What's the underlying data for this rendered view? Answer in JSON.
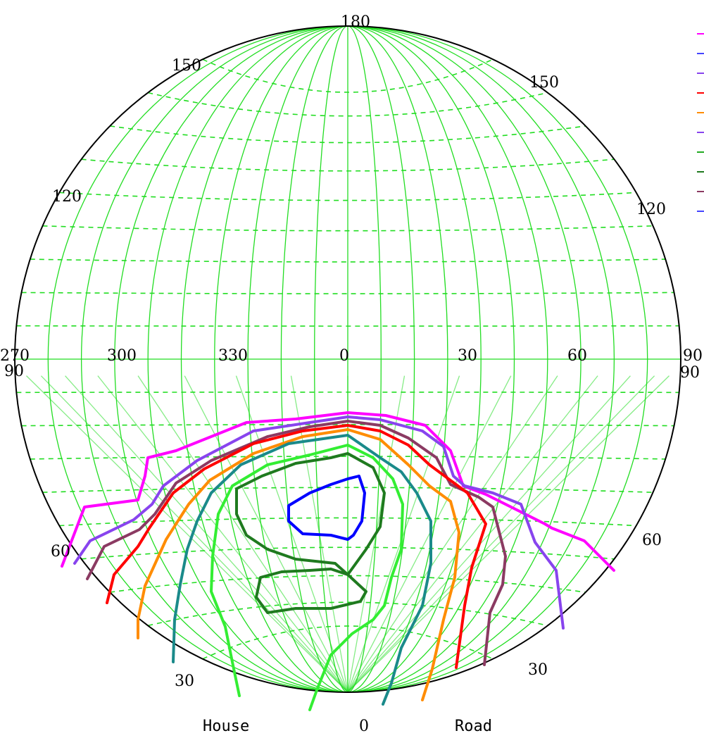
{
  "diagram": {
    "rim_labels": [
      {
        "id": "top",
        "text": "180"
      },
      {
        "id": "upper-left",
        "text": "150"
      },
      {
        "id": "upper-right",
        "text": "150"
      },
      {
        "id": "mid-left",
        "text": "120"
      },
      {
        "id": "mid-right",
        "text": "120"
      },
      {
        "id": "left-upper",
        "text": "270"
      },
      {
        "id": "left-lower",
        "text": "90"
      },
      {
        "id": "right-upper",
        "text": "90"
      },
      {
        "id": "right-lower",
        "text": "90"
      },
      {
        "id": "lower-left",
        "text": "60"
      },
      {
        "id": "lower-right",
        "text": "60"
      },
      {
        "id": "bottom-left",
        "text": "30"
      },
      {
        "id": "bottom-right",
        "text": "30"
      },
      {
        "id": "bottom",
        "text": "0"
      }
    ],
    "equator_labels": [
      "300",
      "330",
      "0",
      "30",
      "60"
    ],
    "bottom_labels": {
      "left": "House",
      "right": "Road"
    },
    "colors": {
      "grid": "#22dd22",
      "rim": "#000000",
      "contours": [
        "#ff00ff",
        "#8844ee",
        "#8b3a62",
        "#ff0000",
        "#ff8c00",
        "#1a8a8a",
        "#33ee33",
        "#1f7a1f",
        "#0000ff"
      ]
    },
    "legend_colors": [
      "#ff00ff",
      "#4444ff",
      "#8844ee",
      "#ff0000",
      "#ff8c00",
      "#8844ee",
      "#22aa22",
      "#1f7a1f",
      "#8b3a62",
      "#4444ff"
    ]
  }
}
